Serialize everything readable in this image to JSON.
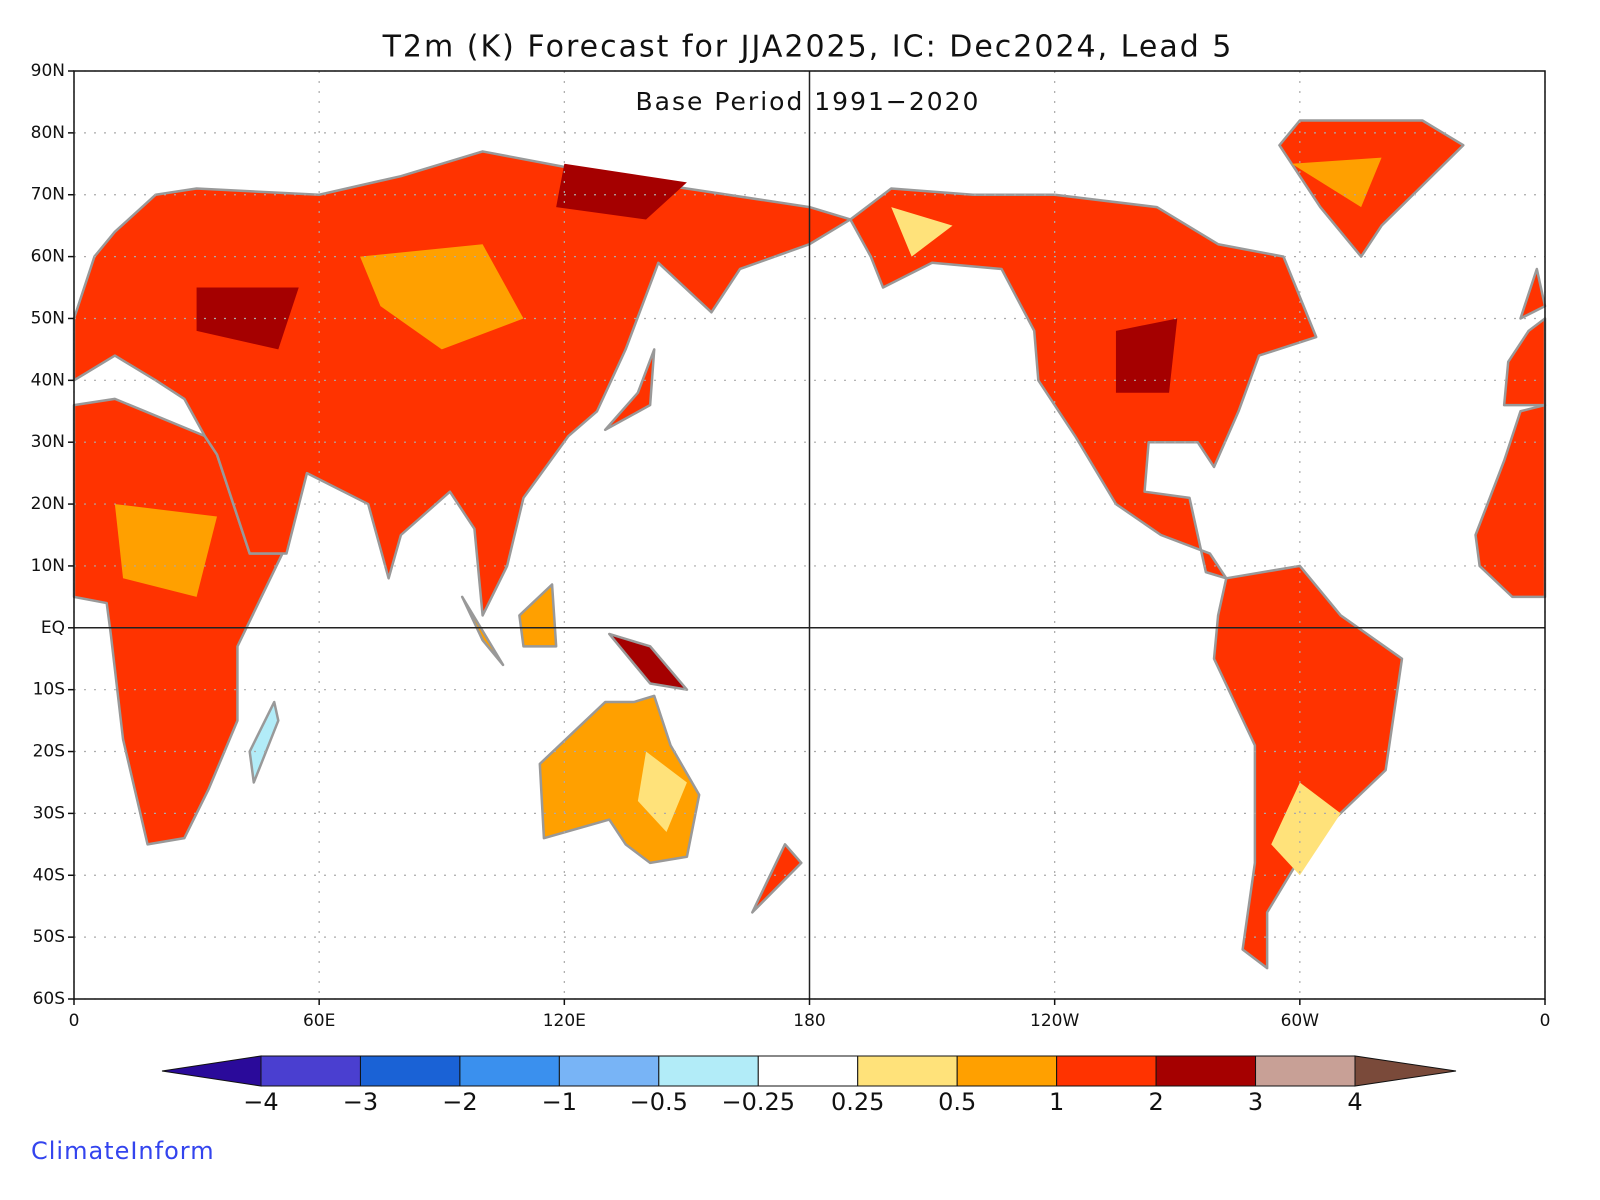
{
  "chart_data": {
    "type": "map",
    "title": "T2m (K) Forecast for JJA2025, IC: Dec2024, Lead 5",
    "subtitle": "Base Period 1991−2020",
    "xlim": [
      0,
      360
    ],
    "ylim": [
      -60,
      90
    ],
    "xticks": [
      0,
      {
        "value": 60,
        "label": "60E"
      },
      {
        "value": 120,
        "label": "120E"
      },
      180,
      {
        "value": 240,
        "label": "120W"
      },
      {
        "value": 300,
        "label": "60W"
      },
      {
        "value": 360,
        "label": "0"
      }
    ],
    "yticks": [
      {
        "value": 90,
        "label": "90N"
      },
      {
        "value": 80,
        "label": "80N"
      },
      {
        "value": 70,
        "label": "70N"
      },
      {
        "value": 60,
        "label": "60N"
      },
      {
        "value": 50,
        "label": "50N"
      },
      {
        "value": 40,
        "label": "40N"
      },
      {
        "value": 30,
        "label": "30N"
      },
      {
        "value": 20,
        "label": "20N"
      },
      {
        "value": 10,
        "label": "10N"
      },
      {
        "value": 0,
        "label": "EQ"
      },
      {
        "value": -10,
        "label": "10S"
      },
      {
        "value": -20,
        "label": "20S"
      },
      {
        "value": -30,
        "label": "30S"
      },
      {
        "value": -40,
        "label": "40S"
      },
      {
        "value": -50,
        "label": "50S"
      },
      {
        "value": -60,
        "label": "60S"
      }
    ],
    "grid": true,
    "reference_lines": {
      "lat": 0,
      "lon": 180
    },
    "colorbar": {
      "levels": [
        {
          "value": -4,
          "label": "−4"
        },
        {
          "value": -3,
          "label": "−3"
        },
        {
          "value": -2,
          "label": "−2"
        },
        {
          "value": -1,
          "label": "−1"
        },
        {
          "value": -0.5,
          "label": "−0.5"
        },
        {
          "value": -0.25,
          "label": "−0.25"
        },
        0.25,
        0.5,
        1,
        2,
        3,
        4
      ],
      "colors": [
        "#2a0a9a",
        "#4a3fd0",
        "#1a62d6",
        "#3a90ee",
        "#78b4f6",
        "#b2ecf8",
        "#ffffff",
        "#ffe27a",
        "#ffa000",
        "#ff3300",
        "#a50000",
        "#c8a096",
        "#7a4a3a"
      ]
    },
    "credit": "ClimateInform"
  }
}
